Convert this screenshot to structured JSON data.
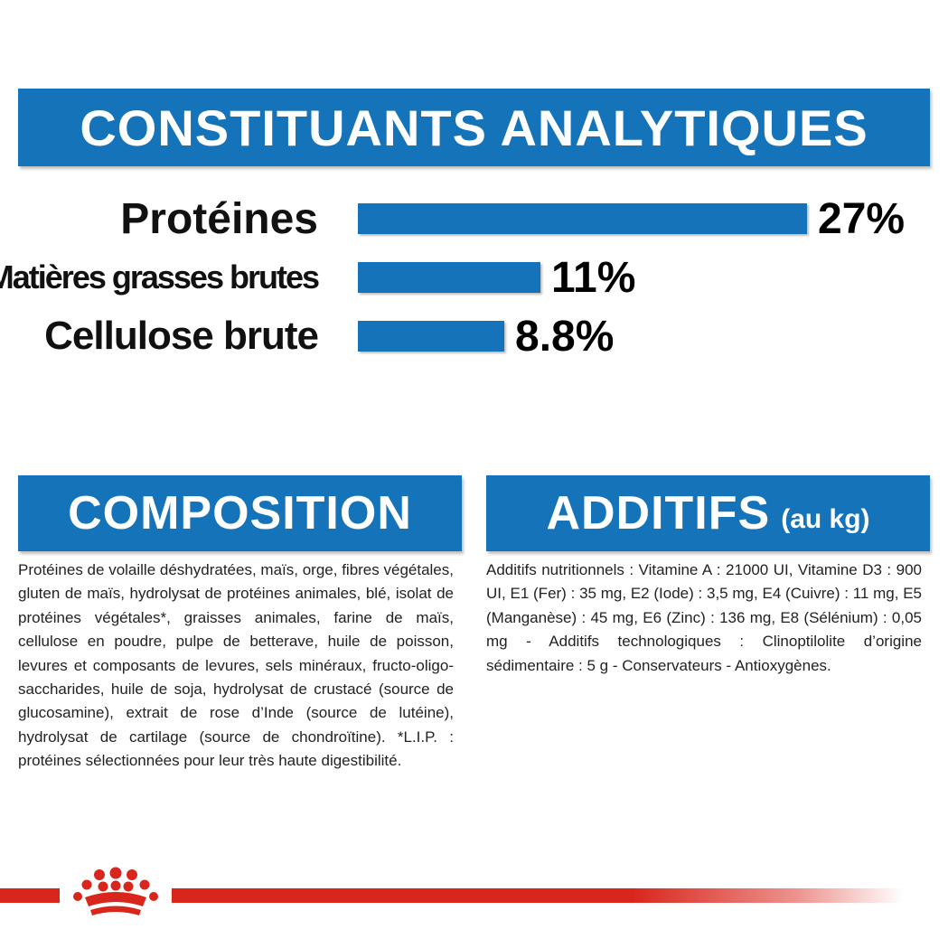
{
  "analytic": {
    "title": "CONSTITUANTS ANALYTIQUES",
    "bar_color": "#1473b9",
    "rows": [
      {
        "label": "Protéines",
        "value_text": "27%",
        "value": 27
      },
      {
        "label": "Matières grasses brutes",
        "value_text": "11%",
        "value": 11
      },
      {
        "label": "Cellulose brute",
        "value_text": "8.8%",
        "value": 8.8
      }
    ]
  },
  "chart_data": {
    "type": "bar",
    "orientation": "horizontal",
    "title": "CONSTITUANTS ANALYTIQUES",
    "categories": [
      "Protéines",
      "Matières grasses brutes",
      "Cellulose brute"
    ],
    "values": [
      27,
      11,
      8.8
    ],
    "data_labels": [
      "27%",
      "11%",
      "8.8%"
    ],
    "xlabel": "",
    "ylabel": "",
    "grid": false
  },
  "composition": {
    "title": "COMPOSITION",
    "text": "Protéines de volaille déshydratées, maïs, orge, fibres végétales, gluten de maïs, hydrolysat de protéines animales, blé, isolat de protéines végétales*, graisses animales, farine de maïs, cellulose en poudre, pulpe de betterave, huile de poisson, levures et composants de levures, sels minéraux, fructo-oligo-saccharides, huile de soja, hydrolysat de crustacé (source de glucosamine), extrait de rose d’Inde (source de lutéine), hydrolysat de cartilage (source de chondroïtine). *L.I.P. : protéines sélectionnées pour leur très haute digestibilité."
  },
  "additifs": {
    "title": "ADDITIFS",
    "subtitle": "(au kg)",
    "text": "Additifs nutritionnels : Vitamine A : 21000 UI, Vitamine D3 : 900 UI, E1 (Fer) : 35 mg, E2 (Iode) : 3,5 mg, E4 (Cuivre) : 11 mg, E5 (Manganèse) : 45 mg, E6 (Zinc) : 136 mg, E8 (Sélénium) : 0,05 mg - Additifs technologiques : Clinoptilolite d’origine sédimentaire : 5 g - Conservateurs - Antioxygènes."
  },
  "footer": {
    "logo": "royal-canin-crown-icon",
    "line_color": "#d9261c"
  }
}
